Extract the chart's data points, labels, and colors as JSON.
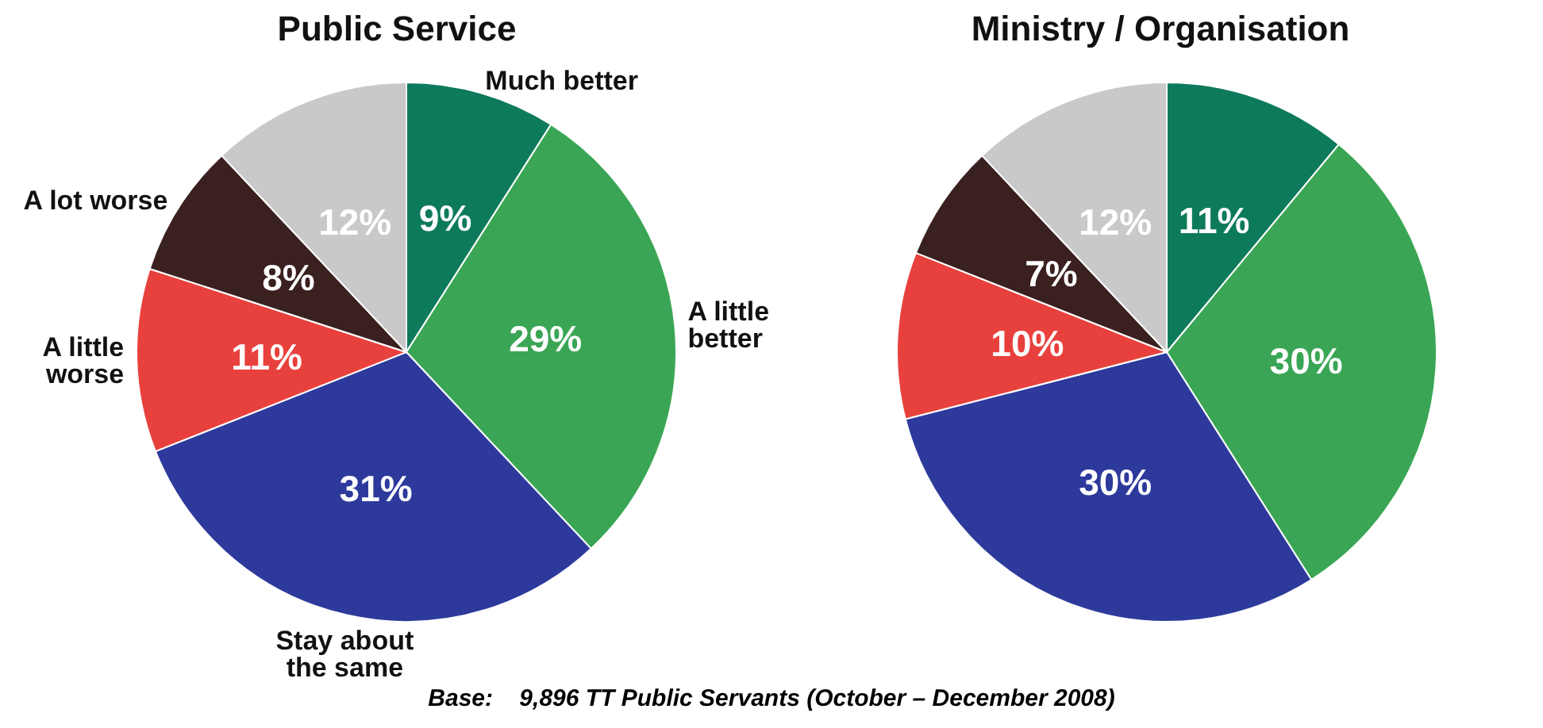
{
  "chart_data": [
    {
      "type": "pie",
      "title": "Public Service",
      "categories": [
        "Much better",
        "A little better",
        "Stay about the same",
        "A little worse",
        "A lot worse",
        null
      ],
      "values": [
        9,
        29,
        31,
        11,
        8,
        12
      ],
      "colors": [
        "#0e7a5c",
        "#3aa655",
        "#2d3a9c",
        "#e8413d",
        "#3b2020",
        "#c9c9c9"
      ],
      "value_labels": [
        "9%",
        "29%",
        "31%",
        "11%",
        "8%",
        "12%"
      ],
      "annotations": [
        "Base:    9,896 TT Public Servants (October – December 2008)"
      ]
    },
    {
      "type": "pie",
      "title": "Ministry / Organisation",
      "categories": [
        null,
        null,
        null,
        null,
        null,
        null
      ],
      "values": [
        11,
        30,
        30,
        10,
        7,
        12
      ],
      "colors": [
        "#0e7a5c",
        "#3aa655",
        "#2d3a9c",
        "#e8413d",
        "#3b2020",
        "#c9c9c9"
      ],
      "value_labels": [
        "11%",
        "30%",
        "30%",
        "10%",
        "7%",
        "12%"
      ]
    }
  ]
}
